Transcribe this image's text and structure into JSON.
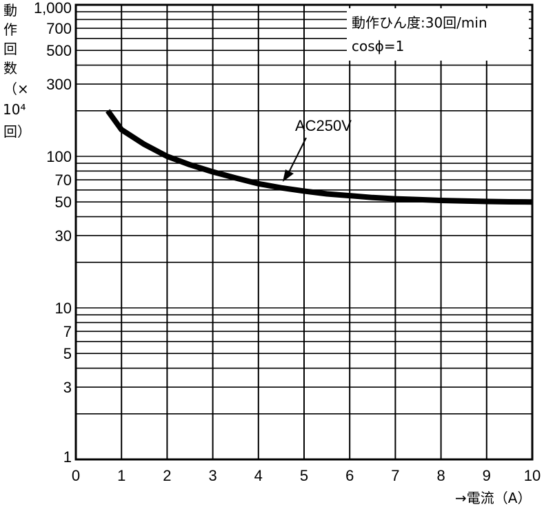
{
  "chart_data": {
    "type": "line",
    "title": "",
    "xlabel": "→電流（A）",
    "ylabel_lines": [
      "動",
      "作",
      "回",
      "数",
      "（×",
      "10⁴",
      "回）"
    ],
    "xlim": [
      0,
      10
    ],
    "ylim": [
      1,
      1000
    ],
    "yscale": "log",
    "grid": true,
    "x_ticks": [
      "0",
      "1",
      "2",
      "3",
      "4",
      "5",
      "6",
      "7",
      "8",
      "9",
      "10"
    ],
    "y_ticks": [
      {
        "value": 1000,
        "label": "1,000"
      },
      {
        "value": 700,
        "label": "700"
      },
      {
        "value": 500,
        "label": "500"
      },
      {
        "value": 300,
        "label": "300"
      },
      {
        "value": 100,
        "label": "100"
      },
      {
        "value": 70,
        "label": "70"
      },
      {
        "value": 50,
        "label": "50"
      },
      {
        "value": 30,
        "label": "30"
      },
      {
        "value": 10,
        "label": "10"
      },
      {
        "value": 7,
        "label": "7"
      },
      {
        "value": 5,
        "label": "5"
      },
      {
        "value": 3,
        "label": "3"
      },
      {
        "value": 1,
        "label": "1"
      }
    ],
    "notes": [
      "動作ひん度:30回/min",
      "cosϕ=1"
    ],
    "series": [
      {
        "name": "AC250V",
        "x": [
          0.7,
          1,
          1.5,
          2,
          2.5,
          3,
          3.5,
          4,
          4.5,
          5,
          5.5,
          6,
          6.5,
          7,
          7.5,
          8,
          8.5,
          9,
          9.5,
          10
        ],
        "values": [
          200,
          150,
          120,
          100,
          88,
          79,
          72,
          66,
          62,
          59,
          56.5,
          55,
          53.5,
          52.5,
          51.8,
          51.2,
          50.8,
          50.4,
          50.1,
          50
        ]
      }
    ],
    "annotation": {
      "text": "AC250V",
      "x": 4.5,
      "y": 61
    }
  }
}
